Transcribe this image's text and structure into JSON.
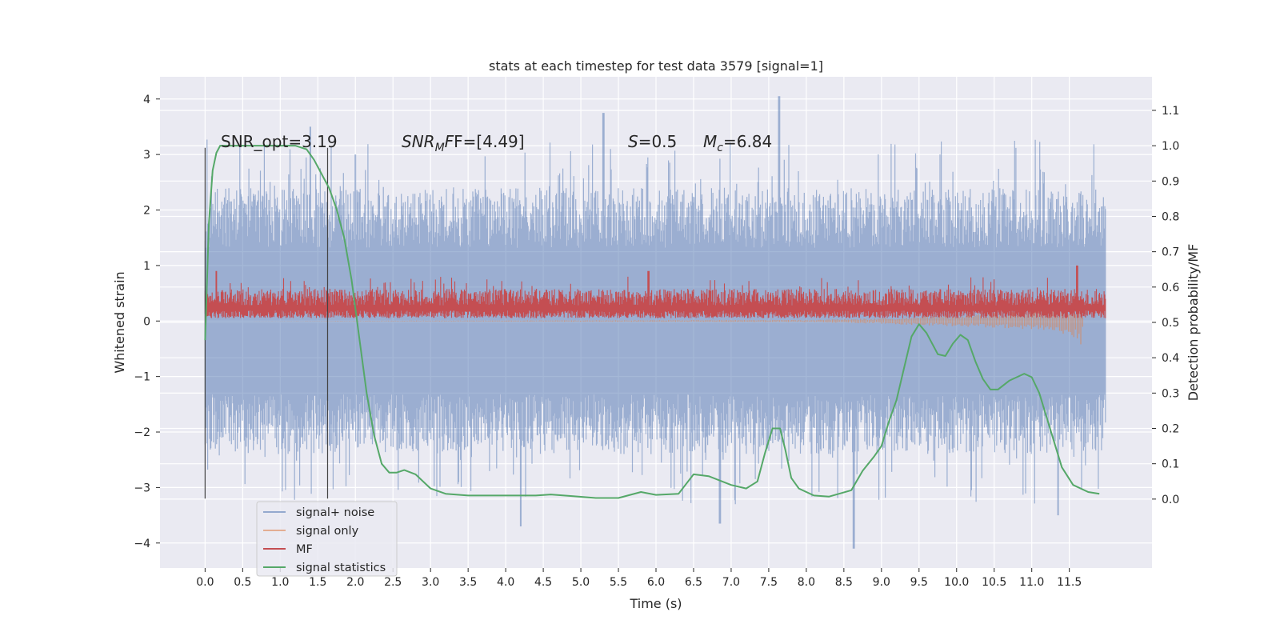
{
  "chart_data": {
    "type": "line",
    "title": "stats at each timestep for test data 3579 [signal=1]",
    "xlabel": "Time (s)",
    "ylabel": "Whitened strain",
    "y2label": "Detection probability/MF",
    "xlim": [
      -0.6,
      12.6
    ],
    "ylim": [
      -4.45,
      4.4
    ],
    "y2lim": [
      -0.195,
      1.195
    ],
    "x_ticks": [
      "0.0",
      "0.5",
      "1.0",
      "1.5",
      "2.0",
      "2.5",
      "3.0",
      "3.5",
      "4.0",
      "4.5",
      "5.0",
      "5.5",
      "6.0",
      "6.5",
      "7.0",
      "7.5",
      "8.0",
      "8.5",
      "9.0",
      "9.5",
      "10.0",
      "10.5",
      "11.0",
      "11.5"
    ],
    "y_ticks": [
      "4",
      "3",
      "2",
      "1",
      "0",
      "−1",
      "−2",
      "−3",
      "−4"
    ],
    "y2_ticks": [
      "1.1",
      "1.0",
      "0.9",
      "0.8",
      "0.7",
      "0.6",
      "0.5",
      "0.4",
      "0.3",
      "0.2",
      "0.1",
      "0.0"
    ],
    "grid": true,
    "legend_position": "lower-left",
    "annotations": {
      "snr_opt": "SNR_opt=3.19",
      "snr_mf_prefix": "SNR",
      "snr_mf_sub": "M",
      "snr_mf_suffix": "F=[4.49]",
      "s_symbol": "S",
      "s_value": "=0.5",
      "mc_symbol": "M",
      "mc_sub": "c",
      "mc_value": "=6.84"
    },
    "vertical_markers_x": [
      0.0,
      1.63
    ],
    "series": [
      {
        "name": "signal+ noise",
        "axis": "left",
        "color": "#4c72b0",
        "style": "noise band",
        "x_range": [
          0.0,
          11.98
        ],
        "envelope_upper": 2.4,
        "envelope_lower": -2.4,
        "peaks": [
          [
            1.4,
            3.5
          ],
          [
            2.0,
            3.0
          ],
          [
            5.3,
            3.75
          ],
          [
            7.64,
            4.05
          ],
          [
            8.63,
            -4.1
          ],
          [
            11.35,
            -3.5
          ],
          [
            4.2,
            -3.7
          ],
          [
            6.85,
            -3.65
          ]
        ]
      },
      {
        "name": "signal only",
        "axis": "left",
        "color": "#dd8452",
        "style": "chirp",
        "x": [
          0.0,
          8.0,
          9.0,
          10.0,
          10.5,
          11.0,
          11.3,
          11.5,
          11.65,
          11.7
        ],
        "upper": [
          0.0,
          0.02,
          0.05,
          0.12,
          0.15,
          0.2,
          0.22,
          0.25,
          0.3,
          0.0
        ],
        "lower": [
          0.0,
          -0.02,
          -0.05,
          -0.1,
          -0.12,
          -0.15,
          -0.2,
          -0.28,
          -0.45,
          0.0
        ]
      },
      {
        "name": "MF",
        "axis": "left",
        "color": "#c44e52",
        "style": "band",
        "x_range": [
          0.0,
          11.98
        ],
        "base": 0.28,
        "amplitude": 0.3,
        "peaks": [
          [
            11.6,
            1.0
          ],
          [
            0.15,
            0.9
          ],
          [
            5.9,
            0.9
          ]
        ]
      },
      {
        "name": "signal statistics",
        "axis": "right",
        "color": "#55a868",
        "x": [
          0.0,
          0.05,
          0.1,
          0.15,
          0.2,
          0.3,
          0.5,
          0.8,
          1.0,
          1.2,
          1.35,
          1.45,
          1.55,
          1.65,
          1.75,
          1.85,
          1.95,
          2.05,
          2.15,
          2.25,
          2.35,
          2.45,
          2.55,
          2.65,
          2.8,
          3.0,
          3.2,
          3.5,
          4.0,
          4.4,
          4.6,
          4.9,
          5.2,
          5.5,
          5.8,
          6.0,
          6.3,
          6.5,
          6.7,
          7.0,
          7.2,
          7.35,
          7.45,
          7.55,
          7.65,
          7.72,
          7.8,
          7.9,
          8.1,
          8.3,
          8.6,
          8.75,
          8.9,
          9.0,
          9.1,
          9.2,
          9.3,
          9.4,
          9.5,
          9.6,
          9.75,
          9.85,
          9.95,
          10.05,
          10.15,
          10.25,
          10.35,
          10.45,
          10.55,
          10.7,
          10.9,
          11.0,
          11.1,
          11.2,
          11.3,
          11.4,
          11.55,
          11.75,
          11.9
        ],
        "y": [
          0.45,
          0.78,
          0.93,
          0.98,
          1.0,
          1.0,
          1.0,
          1.0,
          1.0,
          1.0,
          0.99,
          0.96,
          0.92,
          0.88,
          0.82,
          0.74,
          0.62,
          0.46,
          0.3,
          0.18,
          0.1,
          0.075,
          0.075,
          0.082,
          0.07,
          0.03,
          0.015,
          0.01,
          0.01,
          0.01,
          0.013,
          0.008,
          0.003,
          0.003,
          0.02,
          0.012,
          0.015,
          0.07,
          0.065,
          0.04,
          0.03,
          0.05,
          0.13,
          0.2,
          0.2,
          0.14,
          0.06,
          0.03,
          0.01,
          0.007,
          0.025,
          0.08,
          0.12,
          0.15,
          0.22,
          0.28,
          0.37,
          0.46,
          0.495,
          0.47,
          0.41,
          0.405,
          0.44,
          0.465,
          0.45,
          0.39,
          0.34,
          0.31,
          0.31,
          0.335,
          0.355,
          0.345,
          0.3,
          0.23,
          0.16,
          0.09,
          0.04,
          0.02,
          0.015
        ]
      }
    ]
  }
}
